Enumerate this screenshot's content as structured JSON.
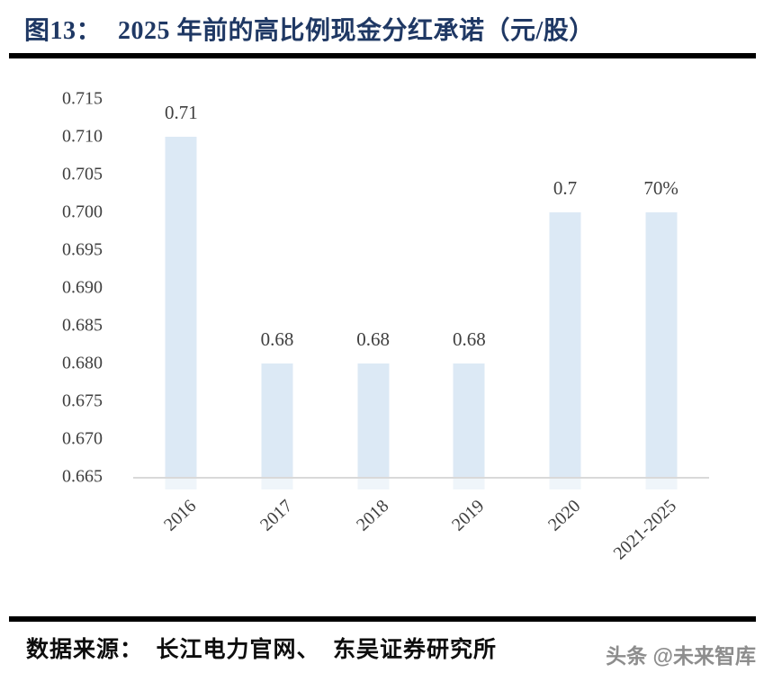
{
  "header": {
    "figure_label": "图13：",
    "figure_title": "2025 年前的高比例现金分红承诺（元/股）"
  },
  "chart_data": {
    "type": "bar",
    "title": "2025 年前的高比例现金分红承诺（元/股）",
    "categories": [
      "2016",
      "2017",
      "2018",
      "2019",
      "2020",
      "2021-2025"
    ],
    "values": [
      0.71,
      0.68,
      0.68,
      0.68,
      0.7,
      0.7
    ],
    "bar_labels": [
      "0.71",
      "0.68",
      "0.68",
      "0.68",
      "0.7",
      "70%"
    ],
    "xlabel": "",
    "ylabel": "",
    "ylim": [
      0.665,
      0.715
    ],
    "y_tick_labels": [
      "0.715",
      "0.710",
      "0.705",
      "0.700",
      "0.695",
      "0.690",
      "0.685",
      "0.680",
      "0.675",
      "0.670",
      "0.665"
    ],
    "grid": false,
    "legend": null,
    "x_label_rotation_deg": -43,
    "bar_color": "#dce9f5",
    "axis_line_color": "#d9d9d9",
    "label_color": "#3f3f3f"
  },
  "footer": {
    "source_text": "数据来源：  长江电力官网、  东吴证券研究所",
    "watermark": "头条 @未来智库"
  },
  "colors": {
    "title_text": "#1f3864",
    "divider": "#000000",
    "background": "#ffffff"
  }
}
